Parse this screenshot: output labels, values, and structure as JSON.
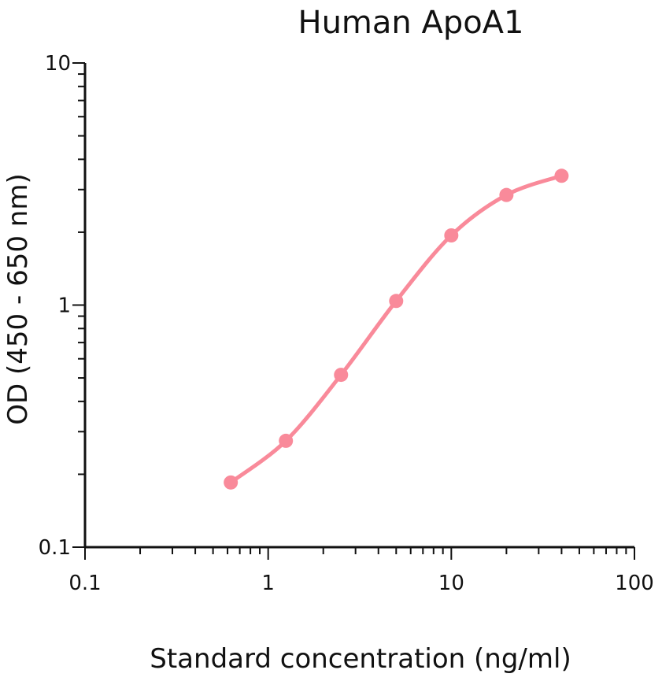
{
  "chart_data": {
    "type": "line",
    "title": "Human ApoA1",
    "xlabel": "Standard concentration (ng/ml)",
    "ylabel": "OD (450 - 650 nm)",
    "x_scale": "log",
    "y_scale": "log",
    "xlim": [
      0.1,
      100
    ],
    "ylim": [
      0.1,
      10
    ],
    "x_ticks": [
      {
        "value": 0.1,
        "label": "0.1"
      },
      {
        "value": 1,
        "label": "1"
      },
      {
        "value": 10,
        "label": "10"
      },
      {
        "value": 100,
        "label": "100"
      }
    ],
    "y_ticks": [
      {
        "value": 0.1,
        "label": "0.1"
      },
      {
        "value": 1,
        "label": "1"
      },
      {
        "value": 10,
        "label": "10"
      }
    ],
    "grid": false,
    "legend": "none",
    "series": [
      {
        "color": "#f98a9a",
        "x": [
          0.625,
          1.25,
          2.5,
          5,
          10,
          20,
          40
        ],
        "y": [
          0.185,
          0.275,
          0.515,
          1.04,
          1.94,
          2.85,
          3.42
        ]
      }
    ]
  }
}
